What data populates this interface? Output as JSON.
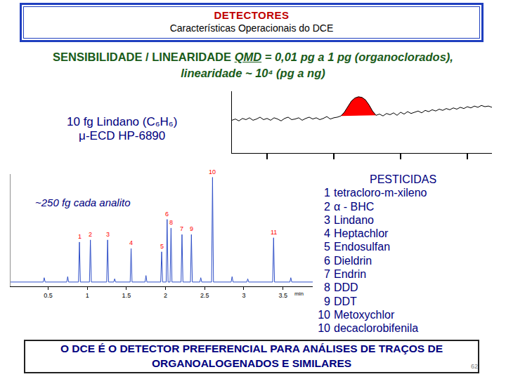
{
  "header": {
    "title": "DETECTORES",
    "subtitle": "Características Operacionais do DCE"
  },
  "heading": {
    "label": "SENSIBILIDADE / LINEARIDADE",
    "qmd": "QMD",
    "qmd_text": "= 0,01 pg a 1 pg (organoclorados),",
    "linearity": "linearidade ~ 10⁴ (pg a ng)"
  },
  "chart_data": [
    {
      "type": "line",
      "title": "10 fg Lindano (C₆H₆)",
      "subtitle": "μ-ECD HP-6890",
      "x": [
        0,
        1,
        2,
        3,
        4,
        5,
        6,
        7,
        8,
        9,
        10,
        11,
        12,
        13,
        14,
        15,
        16,
        17,
        18,
        19,
        20,
        21,
        22,
        23,
        24,
        25,
        26,
        27,
        28,
        29,
        30,
        31,
        32,
        33,
        34,
        35,
        36,
        37,
        38,
        39,
        40,
        41,
        42,
        43,
        44,
        45,
        46,
        47,
        48,
        49,
        50,
        51,
        52,
        53,
        54,
        55,
        56,
        57,
        58,
        59,
        60,
        61,
        62,
        63,
        64,
        65,
        66,
        67,
        68,
        69,
        70,
        71,
        72,
        73,
        74
      ],
      "series": [
        {
          "type": "area",
          "color": "#ff0000",
          "x": [
            31,
            32,
            33,
            34,
            35,
            36,
            37,
            38,
            39,
            40,
            41
          ],
          "values": [
            60,
            66,
            75,
            84,
            89,
            91,
            90,
            86,
            78,
            68,
            61
          ]
        },
        {
          "type": "line",
          "color": "#000000",
          "values": [
            53,
            55,
            52,
            56,
            54,
            57,
            53,
            55,
            58,
            54,
            56,
            53,
            57,
            55,
            52,
            56,
            58,
            54,
            55,
            57,
            53,
            56,
            58,
            55,
            57,
            54,
            56,
            59,
            55,
            57,
            58,
            60,
            66,
            75,
            84,
            89,
            91,
            90,
            86,
            78,
            68,
            61,
            63,
            60,
            64,
            62,
            65,
            61,
            66,
            63,
            67,
            64,
            66,
            68,
            65,
            69,
            67,
            70,
            68,
            71,
            69,
            72,
            70,
            73,
            71,
            74,
            72,
            75,
            73,
            76,
            74,
            77,
            75,
            76,
            74
          ]
        }
      ],
      "xlim": [
        0,
        74
      ],
      "ylim": [
        0,
        100
      ],
      "xticks": [
        10,
        29,
        48,
        67
      ],
      "tick_labels": false
    },
    {
      "type": "line",
      "annotation": "~250 fg cada analito",
      "x_label": "min",
      "color": "#3050c8",
      "x": [
        0.02,
        0.438,
        0.45,
        0.462,
        0.738,
        0.75,
        0.762,
        0.888,
        0.9,
        0.912,
        1.028,
        1.04,
        1.052,
        1.248,
        1.26,
        1.272,
        1.338,
        1.35,
        1.362,
        1.548,
        1.56,
        1.572,
        1.738,
        1.75,
        1.762,
        1.938,
        1.95,
        1.962,
        2.008,
        2.02,
        2.032,
        2.058,
        2.07,
        2.082,
        2.198,
        2.21,
        2.222,
        2.318,
        2.33,
        2.342,
        2.438,
        2.45,
        2.462,
        2.588,
        2.6,
        2.612,
        2.838,
        2.85,
        2.862,
        3.038,
        3.05,
        3.062,
        3.368,
        3.38,
        3.392,
        3.588,
        3.6,
        3.612,
        3.88
      ],
      "values": [
        0,
        0,
        4,
        0,
        0,
        5,
        0,
        0,
        37,
        0,
        0,
        39,
        0,
        0,
        39,
        0,
        0,
        3,
        0,
        0,
        31,
        0,
        0,
        6,
        0,
        0,
        28,
        0,
        0,
        58,
        0,
        0,
        50,
        0,
        0,
        44,
        0,
        0,
        44,
        0,
        0,
        4,
        0,
        0,
        97,
        0,
        0,
        5,
        0,
        0,
        3,
        0,
        0,
        41,
        0,
        0,
        4,
        0,
        0
      ],
      "peak_labels": {
        "color": "#ff0000",
        "items": [
          {
            "label": "1",
            "x": 0.9,
            "y": 37
          },
          {
            "label": "2",
            "x": 1.04,
            "y": 39
          },
          {
            "label": "3",
            "x": 1.26,
            "y": 39
          },
          {
            "label": "4",
            "x": 1.56,
            "y": 31
          },
          {
            "label": "5",
            "x": 1.95,
            "y": 28
          },
          {
            "label": "6",
            "x": 2.02,
            "y": 58
          },
          {
            "label": "8",
            "x": 2.07,
            "y": 50
          },
          {
            "label": "7",
            "x": 2.21,
            "y": 44
          },
          {
            "label": "9",
            "x": 2.33,
            "y": 44
          },
          {
            "label": "10",
            "x": 2.6,
            "y": 97
          },
          {
            "label": "11",
            "x": 3.38,
            "y": 41
          }
        ]
      },
      "xlim": [
        0.02,
        3.88
      ],
      "ylim": [
        -4,
        100
      ],
      "xticks": [
        0.5,
        1,
        1.5,
        2,
        2.5,
        3,
        3.5
      ],
      "tick_labels": "x"
    }
  ],
  "pesticides": {
    "title": "PESTICIDAS",
    "items": [
      {
        "number": "1",
        "name": "tetracloro-m-xileno"
      },
      {
        "number": "2",
        "name": "α - BHC"
      },
      {
        "number": "3",
        "name": "Lindano"
      },
      {
        "number": "4",
        "name": "Heptachlor"
      },
      {
        "number": "5",
        "name": "Endosulfan"
      },
      {
        "number": "6",
        "name": "Dieldrin"
      },
      {
        "number": "7",
        "name": "Endrin"
      },
      {
        "number": "8",
        "name": "DDD"
      },
      {
        "number": "9",
        "name": "DDT"
      },
      {
        "number": "10",
        "name": "Metoxychlor"
      },
      {
        "number": "10",
        "name": "decaclorobifenila"
      }
    ]
  },
  "footer": {
    "lines": [
      "O DCE É O DETECTOR PREFERENCIAL PARA ANÁLISES DE TRAÇOS DE",
      "ORGANOALOGENADOS E SIMILARES"
    ],
    "page": "62"
  }
}
